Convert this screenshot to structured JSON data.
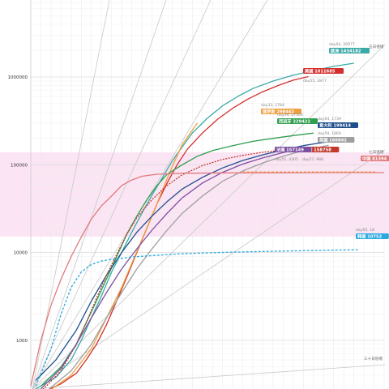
{
  "chart_data": {
    "type": "line",
    "title": "",
    "xlabel": "",
    "ylabel": "",
    "y_scale": "log",
    "ylim": [
      200,
      4000000
    ],
    "xlim": [
      0,
      70
    ],
    "grid": "on",
    "y_ticks": [
      "1000000",
      "100000",
      "10000",
      "1000"
    ],
    "y_tick_values": [
      1000000,
      100000,
      10000,
      1000
    ],
    "reference_lines": [
      {
        "label": "五日倍增",
        "doubling_days": 5,
        "color": "#bbbbbb"
      },
      {
        "label": "七日倍增",
        "doubling_days": 7,
        "color": "#bbbbbb"
      },
      {
        "label": "三十日倍增",
        "doubling_days": 30,
        "color": "#bbbbbb"
      }
    ],
    "series": [
      {
        "tag": "欧洲 1434182",
        "sub": "day64, 26977",
        "color": "#3aa9a8",
        "x": [
          1,
          5,
          8,
          10,
          12,
          14,
          16,
          18,
          20,
          22,
          24,
          26,
          28,
          30,
          32,
          35,
          38,
          41,
          44,
          48,
          52,
          56,
          60,
          64
        ],
        "y": [
          280,
          380,
          600,
          1000,
          1800,
          3200,
          6000,
          10000,
          17000,
          28000,
          45000,
          70000,
          110000,
          160000,
          230000,
          340000,
          470000,
          600000,
          740000,
          900000,
          1050000,
          1180000,
          1320000,
          1434182
        ]
      },
      {
        "tag": "美国 1011685",
        "sub": "day55, 2877",
        "color": "#d32f2f",
        "x": [
          2,
          6,
          9,
          11,
          13,
          15,
          17,
          19,
          21,
          23,
          25,
          27,
          29,
          31,
          34,
          37,
          40,
          43,
          46,
          49,
          52,
          55
        ],
        "y": [
          250,
          320,
          420,
          600,
          900,
          1500,
          2800,
          5200,
          10000,
          19000,
          36000,
          62000,
          100000,
          150000,
          230000,
          330000,
          440000,
          560000,
          680000,
          800000,
          920000,
          1011685
        ]
      },
      {
        "tag": "俄罗斯 298442",
        "sub": "day33, 2784",
        "color": "#f0a040",
        "x": [
          3,
          8,
          12,
          15,
          18,
          20,
          22,
          24,
          26,
          28,
          30,
          33
        ],
        "y": [
          250,
          400,
          800,
          1800,
          4000,
          7500,
          14000,
          26000,
          50000,
          95000,
          170000,
          298442
        ]
      },
      {
        "tag": "西班牙 229422",
        "sub": "day56, 27563",
        "color": "#2e9e4f",
        "x": [
          2,
          6,
          9,
          11,
          13,
          15,
          17,
          19,
          21,
          23,
          25,
          27,
          30,
          33,
          36,
          40,
          44,
          48,
          52,
          56
        ],
        "y": [
          300,
          500,
          900,
          1600,
          2800,
          5000,
          9000,
          16000,
          26000,
          40000,
          58000,
          78000,
          100000,
          125000,
          145000,
          165000,
          185000,
          200000,
          215000,
          229422
        ]
      },
      {
        "tag": "意大利 199414",
        "sub": "day64, 1739",
        "color": "#1f4e8c",
        "x": [
          1,
          5,
          9,
          12,
          15,
          18,
          21,
          24,
          27,
          30,
          34,
          38,
          42,
          46,
          50,
          54,
          58,
          62,
          64
        ],
        "y": [
          350,
          600,
          1300,
          2800,
          5500,
          10000,
          17000,
          26000,
          38000,
          53000,
          72000,
          92000,
          112000,
          130000,
          148000,
          165000,
          180000,
          193000,
          199414
        ]
      },
      {
        "tag": "英国 166842",
        "sub": "day59, 1869",
        "color": "#9e9e9e",
        "x": [
          3,
          8,
          12,
          15,
          18,
          21,
          24,
          27,
          30,
          34,
          38,
          42,
          46,
          50,
          54,
          59
        ],
        "y": [
          260,
          450,
          900,
          1800,
          3500,
          6500,
          11000,
          18000,
          28000,
          44000,
          65000,
          85000,
          105000,
          125000,
          145000,
          166842
        ]
      },
      {
        "tag": "德国 158758",
        "sub": "day57, 988",
        "color": "#c0392b",
        "x": [
          2,
          6,
          9,
          11,
          13,
          15,
          17,
          19,
          21,
          24,
          27,
          30,
          34,
          38,
          42,
          46,
          50,
          54,
          57
        ],
        "y": [
          260,
          450,
          900,
          1600,
          3000,
          5500,
          9500,
          16000,
          25000,
          40000,
          58000,
          77000,
          98000,
          115000,
          128000,
          139000,
          147000,
          154000,
          158758
        ]
      },
      {
        "tag": "法国 157149",
        "sub": "day55, 4305",
        "color": "#7b4fa0",
        "x": [
          2,
          6,
          9,
          12,
          15,
          18,
          21,
          24,
          27,
          30,
          34,
          38,
          42,
          46,
          50,
          55
        ],
        "y": [
          280,
          480,
          900,
          1800,
          3500,
          6500,
          11000,
          18000,
          28000,
          42000,
          62000,
          82000,
          102000,
          120000,
          138000,
          157149
        ]
      },
      {
        "tag": "中国 81394",
        "sub": "",
        "color": "#e07a7a",
        "x": [
          0,
          2,
          4,
          6,
          8,
          10,
          12,
          14,
          16,
          18,
          20,
          22,
          25,
          30,
          40,
          50,
          60,
          70
        ],
        "y": [
          300,
          1000,
          2500,
          5000,
          9000,
          15000,
          24000,
          34000,
          44000,
          58000,
          67000,
          74000,
          78000,
          80000,
          80900,
          81100,
          81300,
          81394
        ]
      },
      {
        "tag": "韩国 10752",
        "sub": "day65, 18",
        "color": "#29a9e0",
        "x": [
          1,
          4,
          6,
          8,
          10,
          12,
          14,
          16,
          18,
          20,
          25,
          30,
          40,
          50,
          60,
          65
        ],
        "y": [
          300,
          800,
          2000,
          4000,
          6000,
          7300,
          8000,
          8400,
          8600,
          8900,
          9300,
          9700,
          10100,
          10400,
          10650,
          10752
        ]
      }
    ]
  }
}
